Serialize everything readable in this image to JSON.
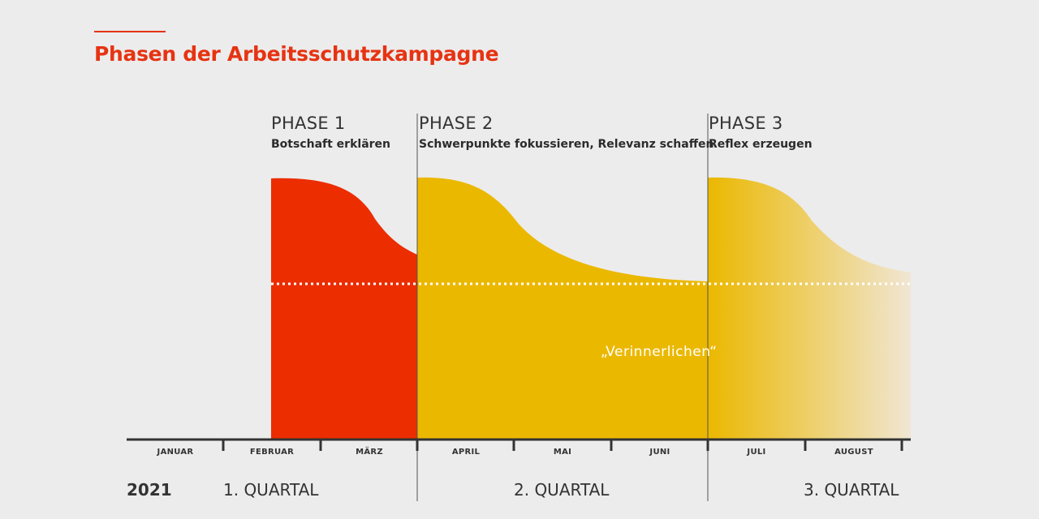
{
  "title": "Phasen der Arbeitsschutzkampagne",
  "phases": [
    {
      "name": "PHASE 1",
      "subtitle": "Botschaft erklären"
    },
    {
      "name": "PHASE 2",
      "subtitle": "Schwerpunkte fokussieren, Relevanz schaffen"
    },
    {
      "name": "PHASE 3",
      "subtitle": "Reflex erzeugen"
    }
  ],
  "months": [
    "JANUAR",
    "FEBRUAR",
    "MÄRZ",
    "APRIL",
    "MAI",
    "JUNI",
    "JULI",
    "AUGUST"
  ],
  "year": "2021",
  "quarters": [
    "1. QUARTAL",
    "2. QUARTAL",
    "3. QUARTAL"
  ],
  "annotation": "„Verinnerlichen“",
  "colors": {
    "accent": "#e63312",
    "phase1": "#eb2d00",
    "phase2": "#ebb800",
    "phase3_start": "#ebb800",
    "phase3_end": "#f0e6d3",
    "axis": "#333333",
    "dotted_line": "#ffffff",
    "background": "#ececec"
  }
}
